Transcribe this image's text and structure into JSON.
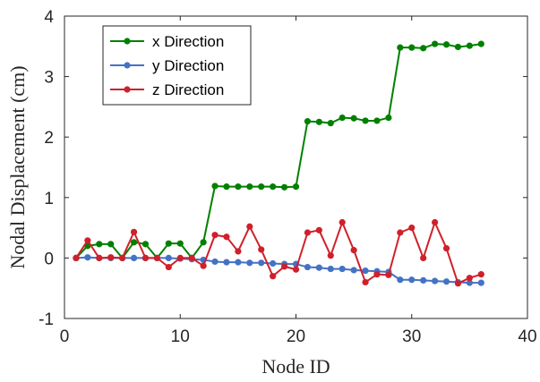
{
  "chart_data": {
    "type": "line",
    "title": "",
    "xlabel": "Node ID",
    "ylabel": "Nodal Displacement (cm)",
    "xlim": [
      0,
      40
    ],
    "ylim": [
      -1,
      4
    ],
    "xticks": [
      "0",
      "10",
      "20",
      "30",
      "40"
    ],
    "yticks": [
      "-1",
      "0",
      "1",
      "2",
      "3",
      "4"
    ],
    "grid": false,
    "legend_position": "top-left",
    "x": [
      1,
      2,
      3,
      4,
      5,
      6,
      7,
      8,
      9,
      10,
      11,
      12,
      13,
      14,
      15,
      16,
      17,
      18,
      19,
      20,
      21,
      22,
      23,
      24,
      25,
      26,
      27,
      28,
      29,
      30,
      31,
      32,
      33,
      34,
      35,
      36
    ],
    "series": [
      {
        "name": "x Direction",
        "color": "#008000",
        "values": [
          0.0,
          0.2,
          0.23,
          0.23,
          0.0,
          0.26,
          0.23,
          0.0,
          0.24,
          0.24,
          0.0,
          0.26,
          1.19,
          1.18,
          1.18,
          1.18,
          1.18,
          1.18,
          1.17,
          1.18,
          2.26,
          2.25,
          2.23,
          2.32,
          2.31,
          2.27,
          2.27,
          2.32,
          3.48,
          3.48,
          3.47,
          3.54,
          3.53,
          3.49,
          3.51,
          3.54
        ]
      },
      {
        "name": "y Direction",
        "color": "#4472c4",
        "values": [
          0.0,
          0.01,
          0.0,
          0.0,
          0.0,
          0.0,
          0.0,
          0.0,
          0.0,
          -0.01,
          -0.02,
          -0.03,
          -0.06,
          -0.07,
          -0.07,
          -0.08,
          -0.08,
          -0.09,
          -0.1,
          -0.1,
          -0.15,
          -0.16,
          -0.18,
          -0.18,
          -0.2,
          -0.21,
          -0.22,
          -0.23,
          -0.36,
          -0.36,
          -0.37,
          -0.38,
          -0.39,
          -0.4,
          -0.41,
          -0.41
        ]
      },
      {
        "name": "z Direction",
        "color": "#d0202a",
        "values": [
          0.0,
          0.29,
          0.0,
          0.01,
          0.0,
          0.43,
          0.0,
          0.0,
          -0.15,
          0.0,
          0.0,
          -0.13,
          0.38,
          0.35,
          0.11,
          0.52,
          0.14,
          -0.3,
          -0.14,
          -0.19,
          0.42,
          0.46,
          0.04,
          0.59,
          0.13,
          -0.4,
          -0.27,
          -0.28,
          0.42,
          0.5,
          0.0,
          0.59,
          0.16,
          -0.42,
          -0.33,
          -0.27
        ]
      }
    ]
  }
}
